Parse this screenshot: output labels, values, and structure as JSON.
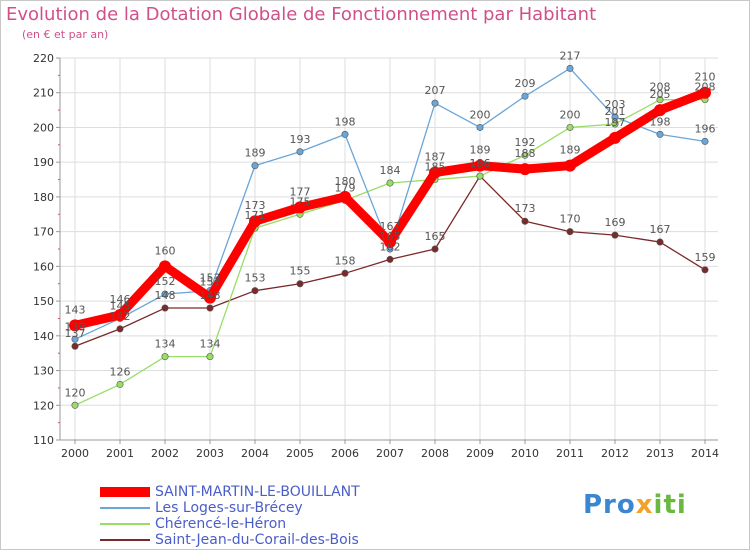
{
  "chart_data": {
    "type": "line",
    "title": "Evolution de la Dotation Globale de Fonctionnement par Habitant",
    "subtitle": "(en € et par an)",
    "x": [
      "2000",
      "2001",
      "2002",
      "2003",
      "2004",
      "2005",
      "2006",
      "2007",
      "2008",
      "2009",
      "2010",
      "2011",
      "2012",
      "2013",
      "2014"
    ],
    "ylim": [
      110,
      220
    ],
    "yticks": [
      110,
      120,
      130,
      140,
      150,
      160,
      170,
      180,
      190,
      200,
      210,
      220
    ],
    "grid": true,
    "legend_position": "bottom-left",
    "series": [
      {
        "name": "SAINT-MARTIN-LE-BOUILLANT",
        "color": "#ff0000",
        "values": [
          143,
          146,
          160,
          151,
          173,
          177,
          180,
          167,
          187,
          189,
          188,
          189,
          197,
          205,
          210
        ]
      },
      {
        "name": "Les Loges-sur-Brécey",
        "color": "#6aa6d8",
        "values": [
          139,
          145,
          152,
          153,
          189,
          193,
          198,
          165,
          207,
          200,
          209,
          217,
          203,
          198,
          196
        ]
      },
      {
        "name": "Chérencé-le-Héron",
        "color": "#99dd66",
        "values": [
          120,
          126,
          134,
          134,
          171,
          175,
          179,
          184,
          185,
          186,
          192,
          200,
          201,
          208,
          208
        ]
      },
      {
        "name": "Saint-Jean-du-Corail-des-Bois",
        "color": "#7a2a2a",
        "values": [
          137,
          142,
          148,
          148,
          153,
          155,
          158,
          162,
          165,
          186,
          173,
          170,
          169,
          167,
          159
        ]
      }
    ]
  },
  "brand": {
    "part1": "Pro",
    "part2": "x",
    "part3": "iti"
  }
}
